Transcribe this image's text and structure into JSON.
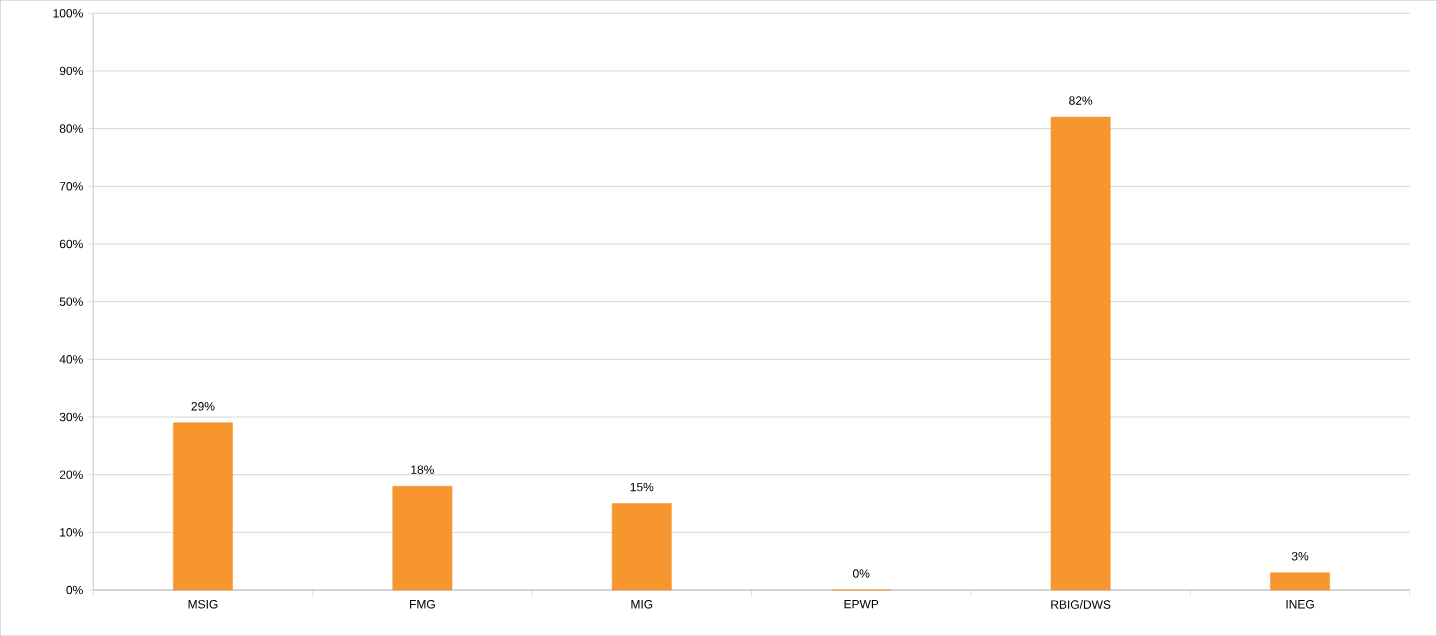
{
  "chart_data": {
    "type": "bar",
    "categories": [
      "MSIG",
      "FMG",
      "MIG",
      "EPWP",
      "RBIG/DWS",
      "INEG"
    ],
    "values": [
      29,
      18,
      15,
      0,
      82,
      3
    ],
    "value_labels": [
      "29%",
      "18%",
      "15%",
      "0%",
      "82%",
      "3%"
    ],
    "color": "#f7962e",
    "ylim": [
      0,
      100
    ],
    "yticks": [
      {
        "value": 0,
        "label": "0%"
      },
      {
        "value": 10,
        "label": "10%"
      },
      {
        "value": 20,
        "label": "20%"
      },
      {
        "value": 30,
        "label": "30%"
      },
      {
        "value": 40,
        "label": "40%"
      },
      {
        "value": 50,
        "label": "50%"
      },
      {
        "value": 60,
        "label": "60%"
      },
      {
        "value": 70,
        "label": "70%"
      },
      {
        "value": 80,
        "label": "80%"
      },
      {
        "value": 90,
        "label": "90%"
      },
      {
        "value": 100,
        "label": "100%"
      }
    ],
    "grid": "y"
  }
}
